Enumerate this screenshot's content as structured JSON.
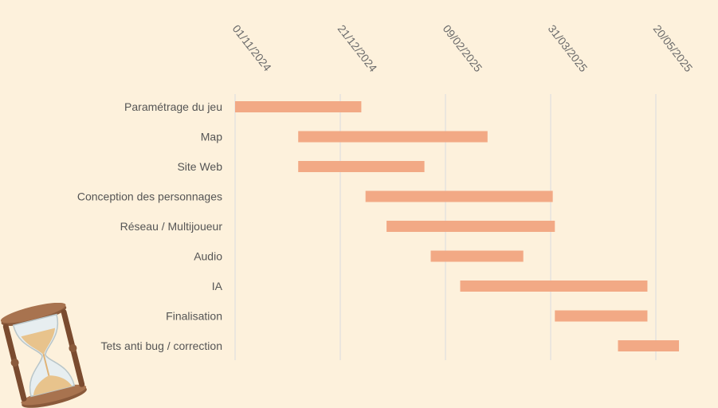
{
  "chart_data": {
    "type": "gantt",
    "title": "",
    "xlabel": "",
    "ylabel": "",
    "x_axis": {
      "kind": "date",
      "ticks": [
        "01/11/2024",
        "21/12/2024",
        "09/02/2025",
        "31/03/2025",
        "20/05/2025"
      ],
      "tick_dates": [
        "2024-11-01",
        "2024-12-21",
        "2025-02-09",
        "2025-03-31",
        "2025-05-20"
      ],
      "range": [
        "2024-11-01",
        "2025-06-20"
      ],
      "label_position": "top",
      "grid": true
    },
    "tasks": [
      {
        "name": "Paramétrage du jeu",
        "start": "2024-11-01",
        "end": "2024-12-31"
      },
      {
        "name": "Map",
        "start": "2024-12-01",
        "end": "2025-03-01"
      },
      {
        "name": "Site Web",
        "start": "2024-12-01",
        "end": "2025-01-30"
      },
      {
        "name": "Conception des personnages",
        "start": "2025-01-02",
        "end": "2025-04-01"
      },
      {
        "name": "Réseau / Multijoueur",
        "start": "2025-01-12",
        "end": "2025-04-02"
      },
      {
        "name": "Audio",
        "start": "2025-02-02",
        "end": "2025-03-18"
      },
      {
        "name": "IA",
        "start": "2025-02-16",
        "end": "2025-05-16"
      },
      {
        "name": "Finalisation",
        "start": "2025-04-02",
        "end": "2025-05-16"
      },
      {
        "name": "Tets anti bug / correction",
        "start": "2025-05-02",
        "end": "2025-05-31"
      }
    ],
    "bar_color": "#f2a985",
    "grid_color": "#d9dcdf"
  },
  "decoration": {
    "icon": "hourglass-icon"
  }
}
